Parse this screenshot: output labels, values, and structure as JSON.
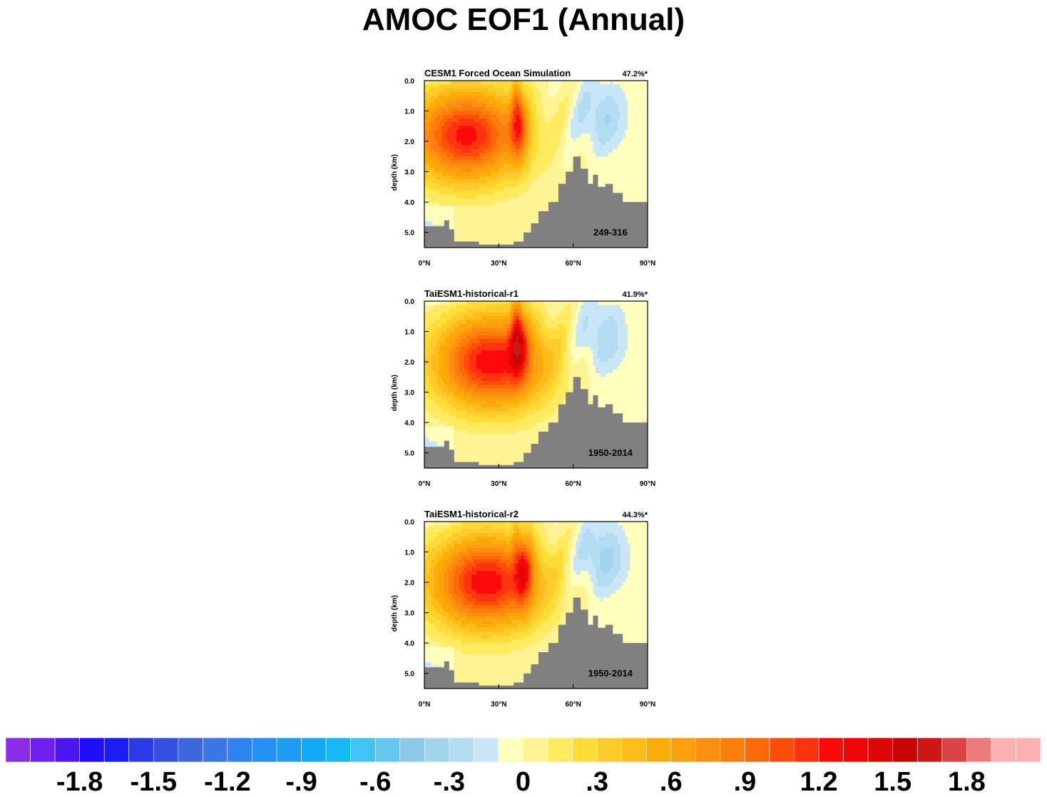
{
  "figure": {
    "title": "AMOC EOF1 (Annual)"
  },
  "chart_data": [
    {
      "type": "heatmap",
      "title": "CESM1 Forced Ocean Simulation",
      "subtitle": "47.2%*",
      "annotation": "249-316",
      "ylabel": "depth (km)",
      "xlabel": "",
      "xticks": [
        "0°N",
        "30°N",
        "60°N",
        "90°N"
      ],
      "xtick_values": [
        0,
        30,
        60,
        90
      ],
      "yticks": [
        "0.0",
        "1.0",
        "2.0",
        "3.0",
        "4.0",
        "5.0"
      ],
      "ytick_values": [
        0,
        1,
        2,
        3,
        4,
        5
      ],
      "xlim": [
        0,
        90
      ],
      "ylim": [
        5.5,
        0
      ],
      "field": {
        "deep_cell_max": 1.25,
        "deep_cell_center": [
          17,
          1.8
        ],
        "front_max": 1.55,
        "front_center": [
          38,
          1.4
        ],
        "north_min": -0.3
      },
      "bathymetry": [
        [
          0,
          4.8
        ],
        [
          8,
          4.8
        ],
        [
          8,
          4.6
        ],
        [
          10,
          4.6
        ],
        [
          10,
          4.9
        ],
        [
          12,
          4.9
        ],
        [
          12,
          5.3
        ],
        [
          22,
          5.3
        ],
        [
          22,
          5.4
        ],
        [
          36,
          5.4
        ],
        [
          36,
          5.3
        ],
        [
          40,
          5.3
        ],
        [
          40,
          5.0
        ],
        [
          43,
          5.0
        ],
        [
          43,
          4.7
        ],
        [
          46,
          4.7
        ],
        [
          46,
          4.3
        ],
        [
          50,
          4.3
        ],
        [
          50,
          4.0
        ],
        [
          54,
          4.0
        ],
        [
          54,
          3.4
        ],
        [
          57,
          3.4
        ],
        [
          57,
          3.0
        ],
        [
          60,
          3.0
        ],
        [
          60,
          2.5
        ],
        [
          63,
          2.5
        ],
        [
          63,
          2.9
        ],
        [
          66,
          2.9
        ],
        [
          66,
          3.4
        ],
        [
          68,
          3.4
        ],
        [
          68,
          3.1
        ],
        [
          70,
          3.1
        ],
        [
          70,
          3.5
        ],
        [
          73,
          3.5
        ],
        [
          73,
          3.4
        ],
        [
          76,
          3.4
        ],
        [
          76,
          3.7
        ],
        [
          80,
          3.7
        ],
        [
          80,
          4.0
        ],
        [
          90,
          4.0
        ]
      ]
    },
    {
      "type": "heatmap",
      "title": "TaiESM1-historical-r1",
      "subtitle": "41.9%*",
      "annotation": "1950-2014",
      "ylabel": "depth (km)",
      "xlabel": "",
      "xticks": [
        "0°N",
        "30°N",
        "60°N",
        "90°N"
      ],
      "xtick_values": [
        0,
        30,
        60,
        90
      ],
      "yticks": [
        "0.0",
        "1.0",
        "2.0",
        "3.0",
        "4.0",
        "5.0"
      ],
      "ytick_values": [
        0,
        1,
        2,
        3,
        4,
        5
      ],
      "xlim": [
        0,
        90
      ],
      "ylim": [
        5.5,
        0
      ],
      "field": {
        "deep_cell_max": 1.3,
        "deep_cell_center": [
          27,
          2.0
        ],
        "front_max": 1.6,
        "front_center": [
          38,
          1.2
        ],
        "north_min": -0.3
      },
      "bathymetry": [
        [
          0,
          4.8
        ],
        [
          8,
          4.8
        ],
        [
          8,
          4.6
        ],
        [
          10,
          4.6
        ],
        [
          10,
          4.9
        ],
        [
          12,
          4.9
        ],
        [
          12,
          5.3
        ],
        [
          22,
          5.3
        ],
        [
          22,
          5.4
        ],
        [
          36,
          5.4
        ],
        [
          36,
          5.3
        ],
        [
          40,
          5.3
        ],
        [
          40,
          5.0
        ],
        [
          43,
          5.0
        ],
        [
          43,
          4.7
        ],
        [
          46,
          4.7
        ],
        [
          46,
          4.3
        ],
        [
          50,
          4.3
        ],
        [
          50,
          4.0
        ],
        [
          54,
          4.0
        ],
        [
          54,
          3.4
        ],
        [
          57,
          3.4
        ],
        [
          57,
          3.0
        ],
        [
          60,
          3.0
        ],
        [
          60,
          2.5
        ],
        [
          63,
          2.5
        ],
        [
          63,
          2.9
        ],
        [
          66,
          2.9
        ],
        [
          66,
          3.4
        ],
        [
          68,
          3.4
        ],
        [
          68,
          3.1
        ],
        [
          70,
          3.1
        ],
        [
          70,
          3.5
        ],
        [
          73,
          3.5
        ],
        [
          73,
          3.4
        ],
        [
          76,
          3.4
        ],
        [
          76,
          3.7
        ],
        [
          80,
          3.7
        ],
        [
          80,
          4.0
        ],
        [
          90,
          4.0
        ]
      ]
    },
    {
      "type": "heatmap",
      "title": "TaiESM1-historical-r2",
      "subtitle": "44.3%*",
      "annotation": "1950-2014",
      "ylabel": "depth (km)",
      "xlabel": "",
      "xticks": [
        "0°N",
        "30°N",
        "60°N",
        "90°N"
      ],
      "xtick_values": [
        0,
        30,
        60,
        90
      ],
      "yticks": [
        "0.0",
        "1.0",
        "2.0",
        "3.0",
        "4.0",
        "5.0"
      ],
      "ytick_values": [
        0,
        1,
        2,
        3,
        4,
        5
      ],
      "xlim": [
        0,
        90
      ],
      "ylim": [
        5.5,
        0
      ],
      "field": {
        "deep_cell_max": 1.3,
        "deep_cell_center": [
          25,
          2.0
        ],
        "front_max": 1.45,
        "front_center": [
          40,
          1.5
        ],
        "north_min": -0.35
      },
      "bathymetry": [
        [
          0,
          4.8
        ],
        [
          8,
          4.8
        ],
        [
          8,
          4.6
        ],
        [
          10,
          4.6
        ],
        [
          10,
          4.9
        ],
        [
          12,
          4.9
        ],
        [
          12,
          5.3
        ],
        [
          22,
          5.3
        ],
        [
          22,
          5.4
        ],
        [
          36,
          5.4
        ],
        [
          36,
          5.3
        ],
        [
          40,
          5.3
        ],
        [
          40,
          5.0
        ],
        [
          43,
          5.0
        ],
        [
          43,
          4.7
        ],
        [
          46,
          4.7
        ],
        [
          46,
          4.3
        ],
        [
          50,
          4.3
        ],
        [
          50,
          4.0
        ],
        [
          54,
          4.0
        ],
        [
          54,
          3.4
        ],
        [
          57,
          3.4
        ],
        [
          57,
          3.0
        ],
        [
          60,
          3.0
        ],
        [
          60,
          2.5
        ],
        [
          63,
          2.5
        ],
        [
          63,
          2.9
        ],
        [
          66,
          2.9
        ],
        [
          66,
          3.4
        ],
        [
          68,
          3.4
        ],
        [
          68,
          3.1
        ],
        [
          70,
          3.1
        ],
        [
          70,
          3.5
        ],
        [
          73,
          3.5
        ],
        [
          73,
          3.4
        ],
        [
          76,
          3.4
        ],
        [
          76,
          3.7
        ],
        [
          80,
          3.7
        ],
        [
          80,
          4.0
        ],
        [
          90,
          4.0
        ]
      ]
    }
  ],
  "colorbar": {
    "labels": [
      "-1.8",
      "-1.5",
      "-1.2",
      "-.9",
      "-.6",
      "-.3",
      "0",
      ".3",
      ".6",
      ".9",
      "1.2",
      "1.5",
      "1.8"
    ],
    "label_values": [
      -1.8,
      -1.5,
      -1.2,
      -0.9,
      -0.6,
      -0.3,
      0,
      0.3,
      0.6,
      0.9,
      1.2,
      1.5,
      1.8
    ],
    "min": -2.1,
    "step": 0.1,
    "n": 42,
    "colors": [
      "#8a2be8",
      "#6e1ff0",
      "#4d17f2",
      "#1e0ef8",
      "#1a1ef2",
      "#2a3ae6",
      "#3550e0",
      "#3d66dc",
      "#3a76e4",
      "#2e82ee",
      "#2490f2",
      "#1d9cf4",
      "#12aaf6",
      "#16b8f6",
      "#43c2f4",
      "#66c8ee",
      "#8ccaea",
      "#a2d4ee",
      "#b2dcf2",
      "#c8e6f6",
      "#ffffbe",
      "#fff394",
      "#ffea60",
      "#ffdc36",
      "#fdcc2c",
      "#fcbc1a",
      "#fcac08",
      "#fca00e",
      "#fc8e12",
      "#fc7e0c",
      "#fc6a08",
      "#fc4e0a",
      "#fc3210",
      "#fc0a0a",
      "#ec0608",
      "#dc0606",
      "#c80404",
      "#cd1616",
      "#dc4444",
      "#ec7c7c",
      "#fcb0b0",
      "#fcb0b0"
    ],
    "mask_color": "#808080"
  }
}
